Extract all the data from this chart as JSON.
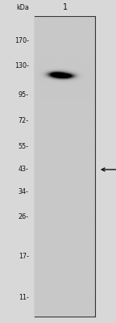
{
  "kda_labels": [
    "170-",
    "130-",
    "95-",
    "72-",
    "55-",
    "43-",
    "34-",
    "26-",
    "17-",
    "11-"
  ],
  "kda_values": [
    170,
    130,
    95,
    72,
    55,
    43,
    34,
    26,
    17,
    11
  ],
  "lane_label": "1",
  "kda_header": "kDa",
  "band_kda": 43,
  "panel_bg": "#c8c8c8",
  "band_color": "#0d0d0d",
  "arrow_color": "#111111",
  "border_color": "#333333",
  "fig_bg": "#d8d8d8",
  "y_min": 9,
  "y_max": 220,
  "label_fontsize": 5.8,
  "lane_fontsize": 7.0
}
